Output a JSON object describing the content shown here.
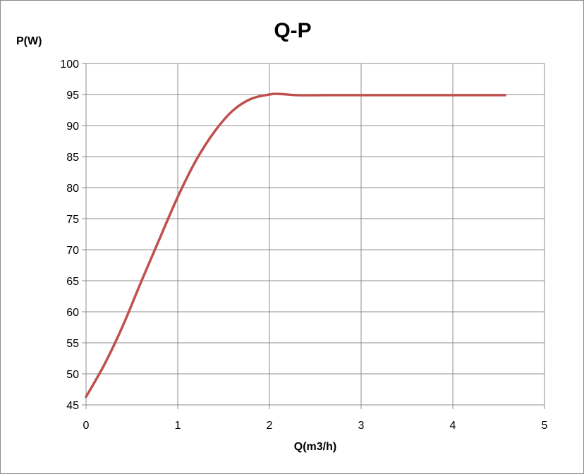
{
  "chart_data": {
    "type": "line",
    "title": "Q-P",
    "xlabel": "Q(m3/h)",
    "ylabel": "P(W)",
    "xlim": [
      0,
      5
    ],
    "ylim": [
      45,
      100
    ],
    "x_ticks": [
      "0",
      "1",
      "2",
      "3",
      "4",
      "5"
    ],
    "y_ticks": [
      "45",
      "50",
      "55",
      "60",
      "65",
      "70",
      "75",
      "80",
      "85",
      "90",
      "95",
      "100"
    ],
    "grid": true,
    "legend": "none",
    "series": [
      {
        "color": "#c0504d",
        "x": [
          0,
          0.2,
          0.4,
          0.6,
          0.8,
          1.0,
          1.2,
          1.4,
          1.6,
          1.8,
          2.0,
          2.1,
          2.3,
          2.6,
          3.0,
          3.5,
          4.0,
          4.57
        ],
        "y": [
          46.3,
          51.5,
          57.7,
          64.8,
          71.7,
          78.5,
          84.4,
          89.0,
          92.4,
          94.3,
          95.0,
          95.1,
          94.9,
          94.9,
          94.9,
          94.9,
          94.9,
          94.9
        ]
      }
    ]
  }
}
